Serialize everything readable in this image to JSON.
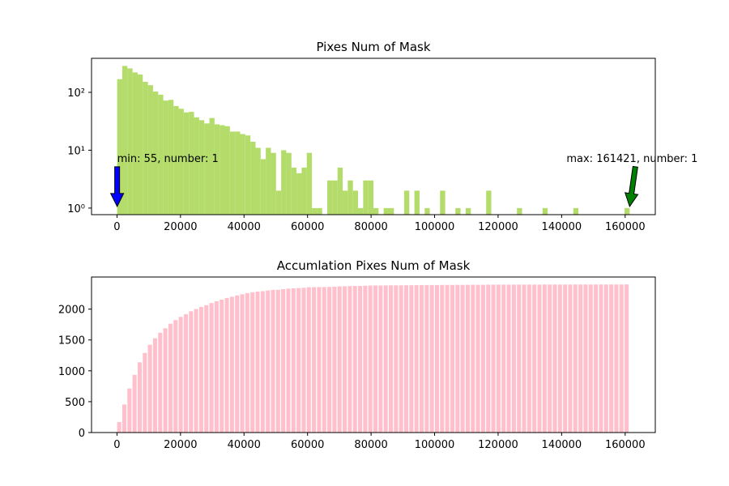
{
  "chart_data": [
    {
      "type": "histogram",
      "title": "Pixes Num of Mask",
      "color": "#b3dc6a",
      "log_y": true,
      "bins": [
        55,
        1669,
        3282,
        4896,
        6510,
        8123,
        9737,
        11351,
        12964,
        14578,
        16192,
        17805,
        19419,
        21033,
        22646,
        24260,
        25874,
        27487,
        29101,
        30715,
        32328,
        33942,
        35556,
        37169,
        38783,
        40397,
        42010,
        43624,
        45238,
        46851,
        48465,
        50079,
        51692,
        53306,
        54920,
        56533,
        58147,
        59761,
        61374,
        62988,
        64602,
        66215,
        67829,
        69443,
        71056,
        72670,
        74284,
        75897,
        77511,
        79125,
        80738,
        82352,
        83966,
        85579,
        87193,
        88807,
        90420,
        92034,
        93648,
        95261,
        96875,
        98489,
        100102,
        101716,
        103330,
        104943,
        106557,
        108171,
        109784,
        111398,
        113012,
        114625,
        116239,
        117853,
        119466,
        121080,
        122694,
        124307,
        125921,
        127535,
        129148,
        130762,
        132376,
        133989,
        135603,
        137217,
        138830,
        140444,
        142058,
        143671,
        145285,
        146899,
        148512,
        150126,
        151740,
        153353,
        154967,
        156581,
        158194,
        159808,
        161421
      ],
      "counts": [
        169,
        286,
        259,
        221,
        203,
        152,
        133,
        103,
        91,
        72,
        74,
        58,
        52,
        45,
        46,
        37,
        33,
        29,
        36,
        28,
        27,
        26,
        21,
        21,
        19,
        18,
        14,
        11,
        7,
        11,
        9,
        2,
        10,
        9,
        5,
        4,
        5,
        9,
        1,
        1,
        0,
        3,
        3,
        5,
        2,
        3,
        2,
        1,
        3,
        3,
        1,
        0,
        1,
        1,
        0,
        0,
        2,
        0,
        2,
        0,
        1,
        0,
        0,
        2,
        0,
        0,
        1,
        0,
        1,
        0,
        0,
        0,
        2,
        0,
        0,
        0,
        0,
        0,
        1,
        0,
        0,
        0,
        0,
        1,
        0,
        0,
        0,
        0,
        0,
        1,
        0,
        0,
        0,
        0,
        0,
        0,
        0,
        0,
        0,
        1
      ],
      "xlim": [
        -8013,
        169489
      ],
      "xticks": [
        0,
        20000,
        40000,
        60000,
        80000,
        100000,
        120000,
        140000,
        160000
      ],
      "ylim": [
        0.77,
        387
      ],
      "yticks": [
        {
          "value": 1,
          "label": "10⁰"
        },
        {
          "value": 10,
          "label": "10¹"
        },
        {
          "value": 100,
          "label": "10²"
        }
      ],
      "annotations": [
        {
          "text": "min: 55, number: 1",
          "xy": [
            55,
            1
          ],
          "color": "#0000ff"
        },
        {
          "text": "max: 161421, number: 1",
          "xy": [
            161421,
            1
          ],
          "color": "#008000"
        }
      ]
    },
    {
      "type": "bar",
      "title": "Accumlation Pixes Num of Mask",
      "color": "#ffc0cb",
      "x": [
        55,
        1669,
        3282,
        4896,
        6510,
        8123,
        9737,
        11351,
        12964,
        14578,
        16192,
        17805,
        19419,
        21033,
        22646,
        24260,
        25874,
        27487,
        29101,
        30715,
        32328,
        33942,
        35556,
        37169,
        38783,
        40397,
        42010,
        43624,
        45238,
        46851,
        48465,
        50079,
        51692,
        53306,
        54920,
        56533,
        58147,
        59761,
        61374,
        62988,
        64602,
        66215,
        67829,
        69443,
        71056,
        72670,
        74284,
        75897,
        77511,
        79125,
        80738,
        82352,
        83966,
        85579,
        87193,
        88807,
        90420,
        92034,
        93648,
        95261,
        96875,
        98489,
        100102,
        101716,
        103330,
        104943,
        106557,
        108171,
        109784,
        111398,
        113012,
        114625,
        116239,
        117853,
        119466,
        121080,
        122694,
        124307,
        125921,
        127535,
        129148,
        130762,
        132376,
        133989,
        135603,
        137217,
        138830,
        140444,
        142058,
        143671,
        145285,
        146899,
        148512,
        150126,
        151740,
        153353,
        154967,
        156581,
        158194,
        159808
      ],
      "values": [
        169,
        455,
        714,
        935,
        1138,
        1290,
        1423,
        1526,
        1617,
        1689,
        1763,
        1821,
        1873,
        1918,
        1964,
        2001,
        2034,
        2063,
        2099,
        2127,
        2154,
        2180,
        2201,
        2222,
        2241,
        2259,
        2273,
        2284,
        2291,
        2302,
        2311,
        2313,
        2323,
        2332,
        2337,
        2341,
        2346,
        2355,
        2356,
        2357,
        2357,
        2360,
        2363,
        2368,
        2370,
        2373,
        2375,
        2376,
        2379,
        2382,
        2383,
        2383,
        2384,
        2385,
        2385,
        2385,
        2387,
        2387,
        2389,
        2389,
        2390,
        2390,
        2390,
        2392,
        2392,
        2392,
        2393,
        2393,
        2394,
        2394,
        2394,
        2394,
        2396,
        2396,
        2396,
        2396,
        2396,
        2396,
        2397,
        2397,
        2397,
        2397,
        2397,
        2398,
        2398,
        2398,
        2398,
        2398,
        2398,
        2399,
        2399,
        2399,
        2399,
        2399,
        2399,
        2399,
        2399,
        2399,
        2399,
        2400
      ],
      "xlim": [
        -8013,
        169489
      ],
      "xticks": [
        0,
        20000,
        40000,
        60000,
        80000,
        100000,
        120000,
        140000,
        160000
      ],
      "ylim": [
        0,
        2520
      ],
      "yticks": [
        0,
        500,
        1000,
        1500,
        2000
      ]
    }
  ]
}
